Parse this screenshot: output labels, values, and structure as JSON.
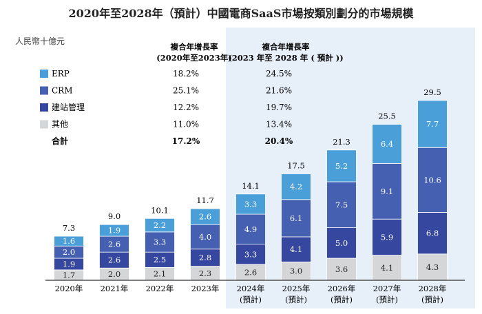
{
  "chart_data": {
    "type": "bar",
    "stacked": true,
    "title": "2020年至2028年（預計）中國電商SaaS市場按類別劃分的市場規模",
    "ylabel": "人民幣十億元",
    "categories": [
      "2020年",
      "2021年",
      "2022年",
      "2023年",
      "2024年",
      "2025年",
      "2026年",
      "2027年",
      "2028年"
    ],
    "category_sublabels": [
      "",
      "",
      "",
      "",
      "(預計)",
      "(預計)",
      "(預計)",
      "(預計)",
      "(預計)"
    ],
    "forecast_start_index": 4,
    "series": [
      {
        "name": "其他",
        "color": "#d5d6d8",
        "values": [
          1.7,
          2.0,
          2.1,
          2.3,
          2.6,
          3.0,
          3.6,
          4.1,
          4.3
        ]
      },
      {
        "name": "建站管理",
        "color": "#35479f",
        "values": [
          1.9,
          2.6,
          2.5,
          2.8,
          3.3,
          4.1,
          5.0,
          5.9,
          6.8
        ]
      },
      {
        "name": "CRM",
        "color": "#4560b1",
        "values": [
          2.0,
          2.6,
          3.3,
          4.0,
          4.9,
          6.1,
          7.5,
          9.1,
          10.6
        ]
      },
      {
        "name": "ERP",
        "color": "#4a9fd9",
        "values": [
          1.6,
          1.9,
          2.2,
          2.6,
          3.3,
          4.2,
          5.2,
          6.4,
          7.7
        ]
      }
    ],
    "totals": [
      7.3,
      9.0,
      10.1,
      11.7,
      14.1,
      17.5,
      21.3,
      25.5,
      29.5
    ],
    "ylim": [
      0,
      30
    ],
    "grid": false,
    "legend_position": "top-left",
    "cagr_table": {
      "headers": [
        [
          "複合年增長率",
          "(2020年至2023年)"
        ],
        [
          "複合年增長率",
          "(2023 年至 2028 年 ( 預計 ))"
        ]
      ],
      "rows": [
        {
          "name": "ERP",
          "color": "#4a9fd9",
          "a": "18.2%",
          "b": "24.5%"
        },
        {
          "name": "CRM",
          "color": "#4560b1",
          "a": "25.1%",
          "b": "21.6%"
        },
        {
          "name": "建站管理",
          "color": "#35479f",
          "a": "12.2%",
          "b": "19.7%"
        },
        {
          "name": "其他",
          "color": "#d5d6d8",
          "a": "11.0%",
          "b": "13.4%"
        },
        {
          "name": "合計",
          "color": "",
          "a": "17.2%",
          "b": "20.4%"
        }
      ]
    },
    "forecast_panel_color": "#e7eff9"
  }
}
